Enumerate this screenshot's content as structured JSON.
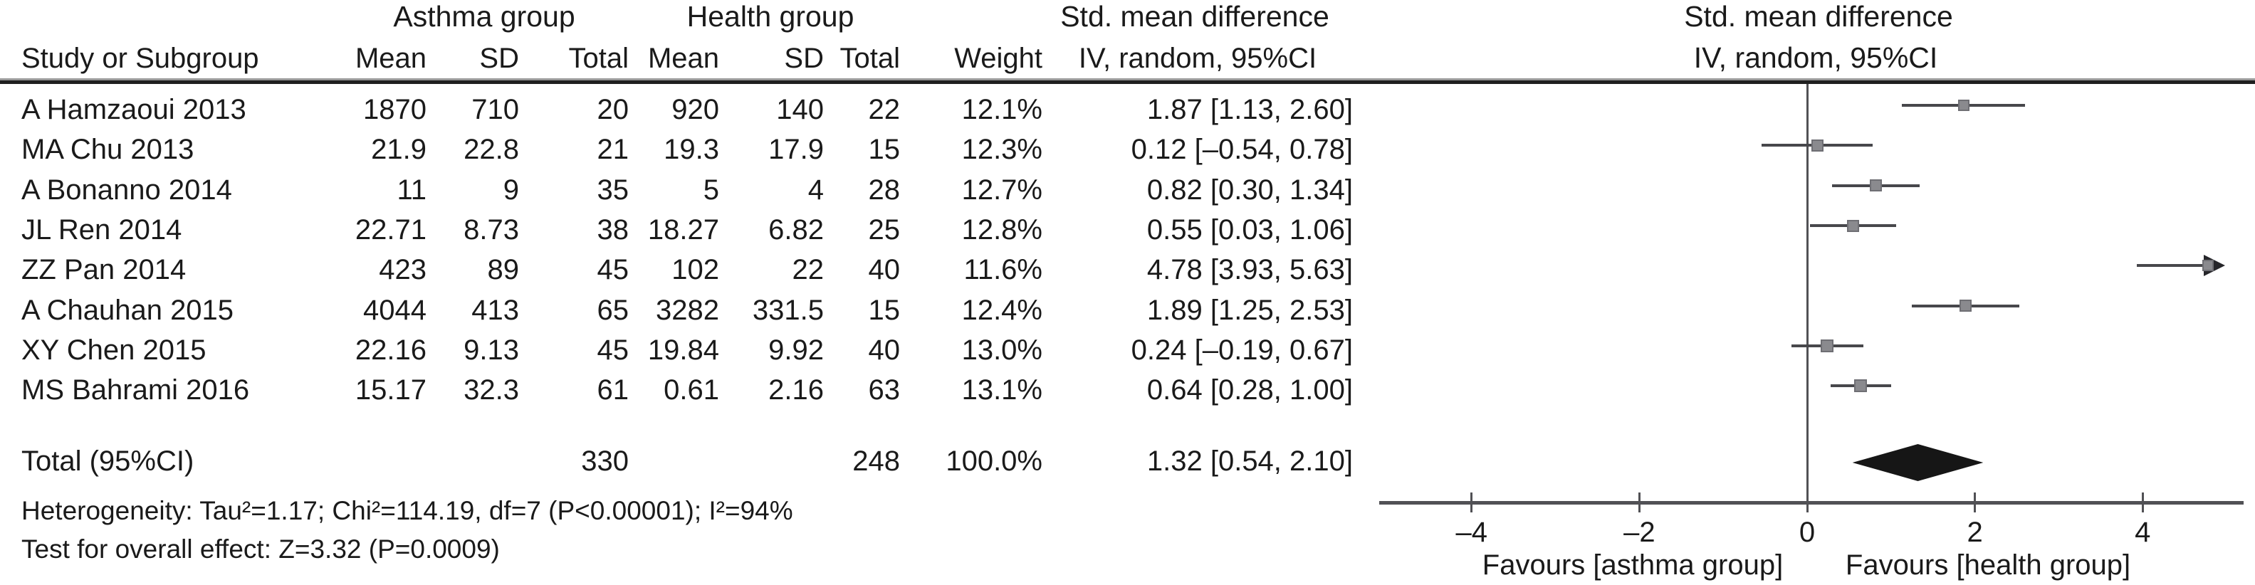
{
  "colors": {
    "text": "#1a1a1a",
    "ci_line": "#47474b",
    "marker": "#8a8a8e",
    "marker_border": "#6f6f74",
    "axis": "#515155",
    "zero_line": "#515155",
    "diamond": "#161616",
    "arrow": "#26262a"
  },
  "table": {
    "header": {
      "group1": "Asthma group",
      "group2": "Health group",
      "smd_col_title": "Std. mean difference",
      "study": "Study or Subgroup",
      "mean1": "Mean",
      "sd1": "SD",
      "total1": "Total",
      "mean2": "Mean",
      "sd2": "SD",
      "total2": "Total",
      "weight": "Weight",
      "iv_random": "IV, random, 95%CI"
    },
    "rows": [
      {
        "study": "A Hamzaoui 2013",
        "a_mean": "1870",
        "a_sd": "710",
        "a_total": "20",
        "h_mean": "920",
        "h_sd": "140",
        "h_total": "22",
        "weight": "12.1%",
        "ci_text": "1.87 [1.13, 2.60]"
      },
      {
        "study": "MA Chu 2013",
        "a_mean": "21.9",
        "a_sd": "22.8",
        "a_total": "21",
        "h_mean": "19.3",
        "h_sd": "17.9",
        "h_total": "15",
        "weight": "12.3%",
        "ci_text": "0.12 [–0.54, 0.78]"
      },
      {
        "study": "A Bonanno 2014",
        "a_mean": "11",
        "a_sd": "9",
        "a_total": "35",
        "h_mean": "5",
        "h_sd": "4",
        "h_total": "28",
        "weight": "12.7%",
        "ci_text": "0.82 [0.30, 1.34]"
      },
      {
        "study": "JL Ren 2014",
        "a_mean": "22.71",
        "a_sd": "8.73",
        "a_total": "38",
        "h_mean": "18.27",
        "h_sd": "6.82",
        "h_total": "25",
        "weight": "12.8%",
        "ci_text": "0.55 [0.03, 1.06]"
      },
      {
        "study": "ZZ Pan 2014",
        "a_mean": "423",
        "a_sd": "89",
        "a_total": "45",
        "h_mean": "102",
        "h_sd": "22",
        "h_total": "40",
        "weight": "11.6%",
        "ci_text": "4.78 [3.93, 5.63]"
      },
      {
        "study": "A Chauhan 2015",
        "a_mean": "4044",
        "a_sd": "413",
        "a_total": "65",
        "h_mean": "3282",
        "h_sd": "331.5",
        "h_total": "15",
        "weight": "12.4%",
        "ci_text": "1.89 [1.25, 2.53]"
      },
      {
        "study": "XY Chen 2015",
        "a_mean": "22.16",
        "a_sd": "9.13",
        "a_total": "45",
        "h_mean": "19.84",
        "h_sd": "9.92",
        "h_total": "40",
        "weight": "13.0%",
        "ci_text": "0.24 [–0.19, 0.67]"
      },
      {
        "study": "MS Bahrami 2016",
        "a_mean": "15.17",
        "a_sd": "32.3",
        "a_total": "61",
        "h_mean": "0.61",
        "h_sd": "2.16",
        "h_total": "63",
        "weight": "13.1%",
        "ci_text": "0.64 [0.28, 1.00]"
      }
    ],
    "total_row": {
      "label": "Total (95%CI)",
      "a_total": "330",
      "h_total": "248",
      "weight": "100.0%",
      "ci_text": "1.32 [0.54, 2.10]"
    },
    "footnotes": {
      "heterogeneity": "Heterogeneity: Tau²=1.17; Chi²=114.19, df=7 (P<0.00001); I²=94%",
      "overall_effect": "Test for overall effect: Z=3.32 (P=0.0009)"
    }
  },
  "chart_data": {
    "type": "forest",
    "title": "Std. mean difference",
    "subtitle": "IV, random, 95%CI",
    "xlabel": "",
    "xlim": [
      -5.1,
      5.2
    ],
    "ticks": [
      -4,
      -2,
      0,
      2,
      4
    ],
    "tick_labels": [
      "–4",
      "–2",
      "0",
      "2",
      "4"
    ],
    "zero_line": 0,
    "favours_left": "Favours [asthma group]",
    "favours_right": "Favours [health group]",
    "studies": [
      {
        "name": "A Hamzaoui 2013",
        "smd": 1.87,
        "lo": 1.13,
        "hi": 2.6,
        "weight_pct": 12.1
      },
      {
        "name": "MA Chu 2013",
        "smd": 0.12,
        "lo": -0.54,
        "hi": 0.78,
        "weight_pct": 12.3
      },
      {
        "name": "A Bonanno 2014",
        "smd": 0.82,
        "lo": 0.3,
        "hi": 1.34,
        "weight_pct": 12.7
      },
      {
        "name": "JL Ren 2014",
        "smd": 0.55,
        "lo": 0.03,
        "hi": 1.06,
        "weight_pct": 12.8
      },
      {
        "name": "ZZ Pan 2014",
        "smd": 4.78,
        "lo": 3.93,
        "hi": 5.63,
        "weight_pct": 11.6
      },
      {
        "name": "A Chauhan 2015",
        "smd": 1.89,
        "lo": 1.25,
        "hi": 2.53,
        "weight_pct": 12.4
      },
      {
        "name": "XY Chen 2015",
        "smd": 0.24,
        "lo": -0.19,
        "hi": 0.67,
        "weight_pct": 13.0
      },
      {
        "name": "MS Bahrami 2016",
        "smd": 0.64,
        "lo": 0.28,
        "hi": 1.0,
        "weight_pct": 13.1
      }
    ],
    "total": {
      "smd": 1.32,
      "lo": 0.54,
      "hi": 2.1
    }
  }
}
